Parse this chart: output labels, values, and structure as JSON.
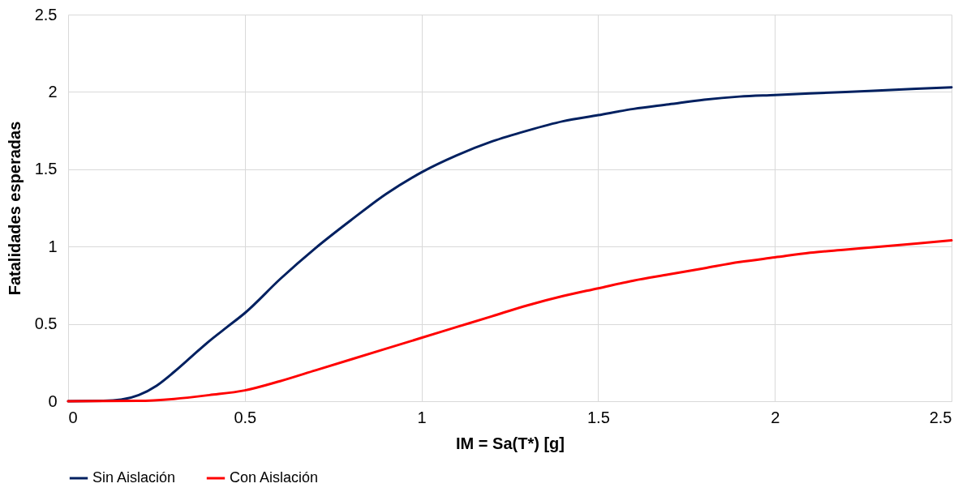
{
  "chart_data": {
    "type": "line",
    "xlabel": "IM = Sa(T*) [g]",
    "ylabel": "Fatalidades esperadas",
    "xlim": [
      0,
      2.5
    ],
    "ylim": [
      0,
      2.5
    ],
    "xticks": [
      0,
      0.5,
      1,
      1.5,
      2,
      2.5
    ],
    "yticks": [
      0,
      0.5,
      1,
      1.5,
      2,
      2.5
    ],
    "grid": true,
    "legend": "bottom",
    "marker": "none",
    "line_style": "solid",
    "series": [
      {
        "name": "Sin Aislación",
        "color": "#002060",
        "x": [
          0,
          0.1,
          0.15,
          0.2,
          0.25,
          0.3,
          0.35,
          0.4,
          0.45,
          0.5,
          0.6,
          0.7,
          0.8,
          0.9,
          1.0,
          1.1,
          1.2,
          1.3,
          1.4,
          1.5,
          1.6,
          1.7,
          1.8,
          1.9,
          2.0,
          2.2,
          2.4,
          2.5
        ],
        "values": [
          0,
          0.002,
          0.01,
          0.04,
          0.1,
          0.19,
          0.29,
          0.39,
          0.48,
          0.57,
          0.79,
          0.99,
          1.17,
          1.34,
          1.48,
          1.59,
          1.68,
          1.75,
          1.81,
          1.85,
          1.89,
          1.92,
          1.95,
          1.97,
          1.98,
          2.0,
          2.02,
          2.03
        ]
      },
      {
        "name": "Con Aislación",
        "color": "#ff0000",
        "x": [
          0,
          0.2,
          0.3,
          0.4,
          0.5,
          0.6,
          0.7,
          0.8,
          0.9,
          1.0,
          1.1,
          1.2,
          1.3,
          1.4,
          1.5,
          1.6,
          1.7,
          1.8,
          1.9,
          2.0,
          2.1,
          2.2,
          2.3,
          2.4,
          2.5
        ],
        "values": [
          0,
          0.002,
          0.015,
          0.04,
          0.07,
          0.13,
          0.2,
          0.27,
          0.34,
          0.41,
          0.48,
          0.55,
          0.62,
          0.68,
          0.73,
          0.78,
          0.82,
          0.86,
          0.9,
          0.93,
          0.96,
          0.98,
          1.0,
          1.02,
          1.04
        ]
      }
    ]
  }
}
